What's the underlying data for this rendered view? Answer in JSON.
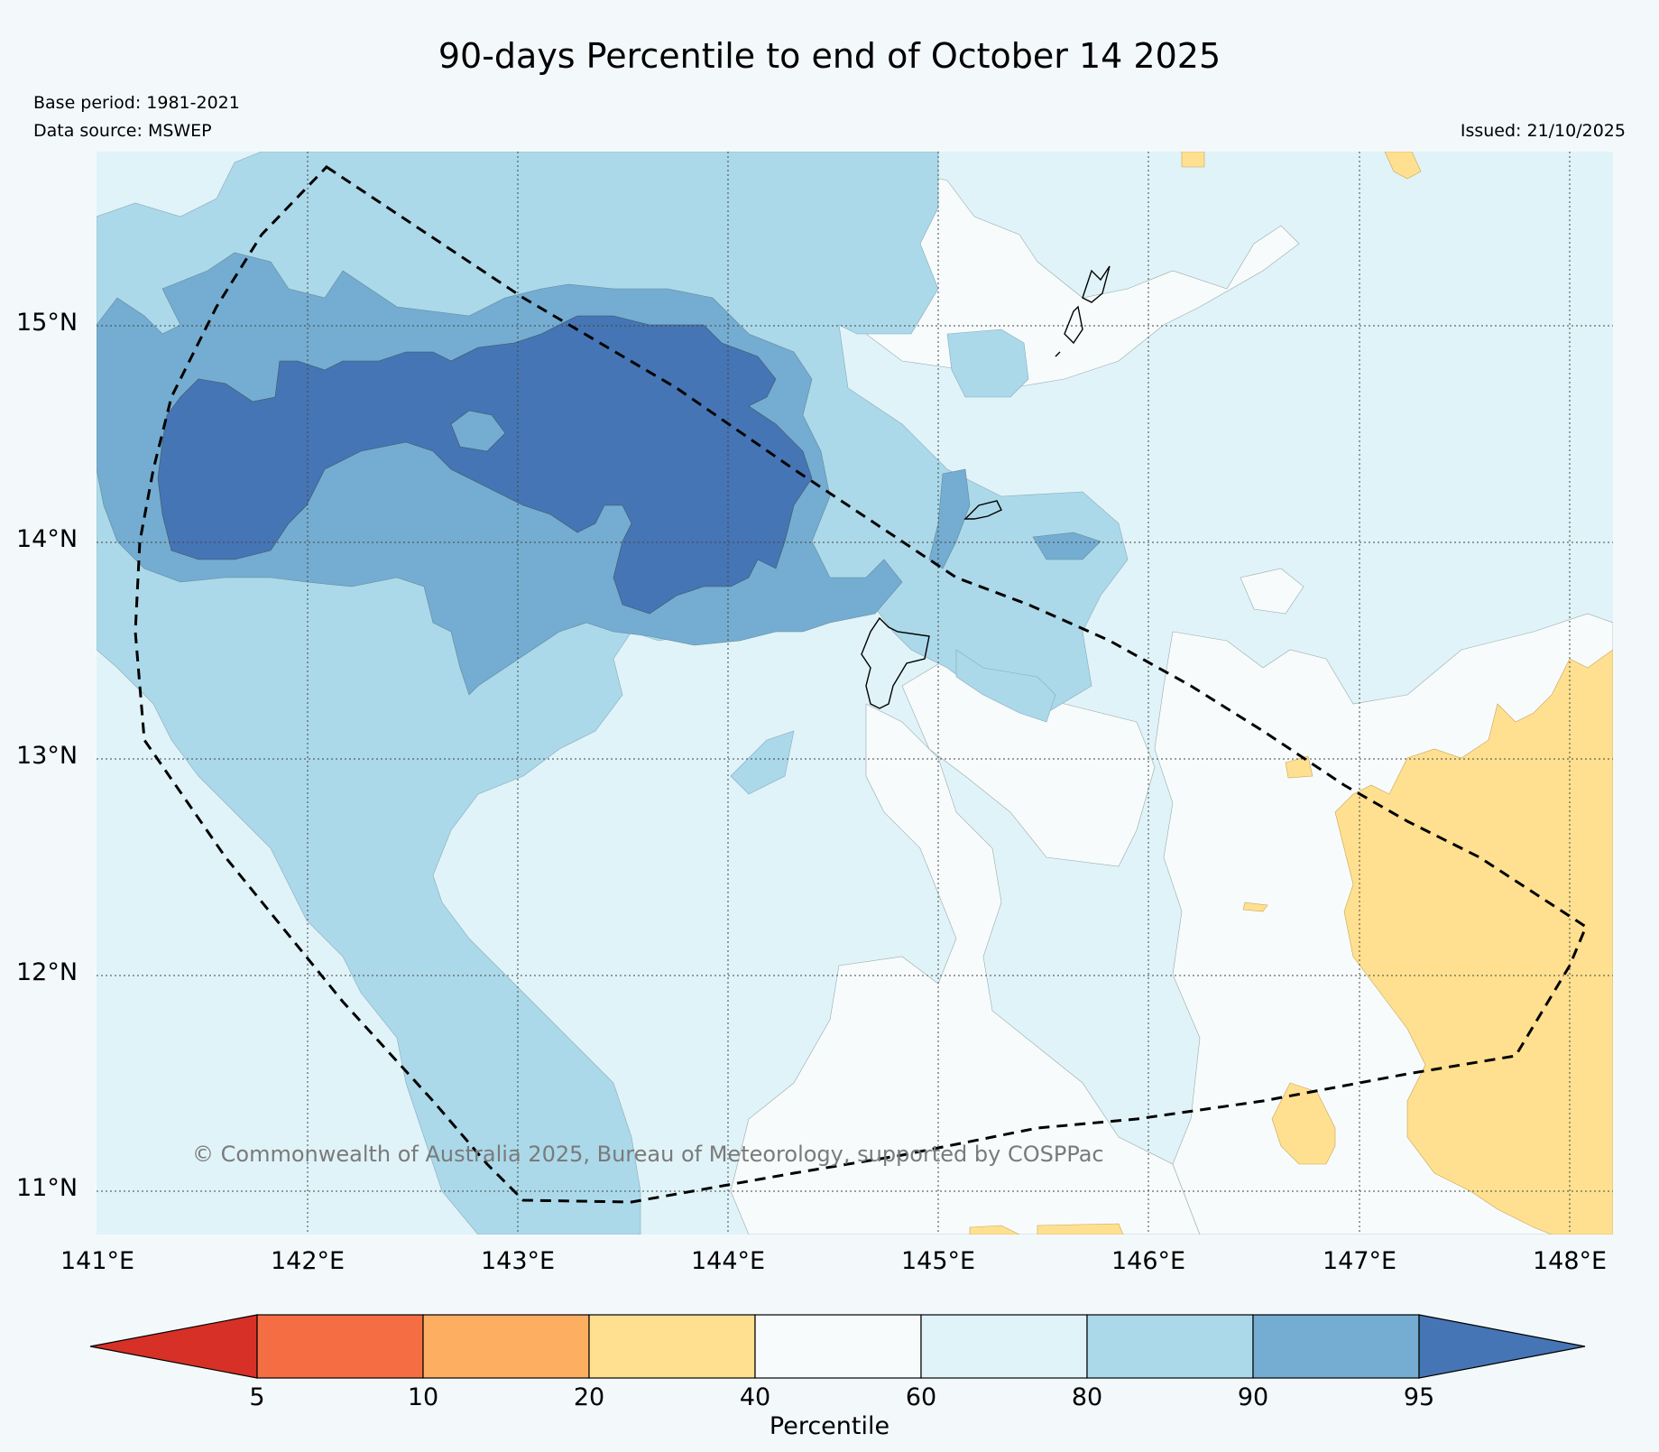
{
  "title": "90-days Percentile to end of October 14 2025",
  "base_period": "Base period: 1981-2021",
  "data_source": "Data source: MSWEP",
  "issued": "Issued: 21/10/2025",
  "copyright": "© Commonwealth of Australia 2025, Bureau of Meteorology, supported by COSPPac",
  "lat_ticks": [
    "15°N",
    "14°N",
    "13°N",
    "12°N",
    "11°N"
  ],
  "lon_ticks": [
    "141°E",
    "142°E",
    "143°E",
    "144°E",
    "145°E",
    "146°E",
    "147°E",
    "148°E"
  ],
  "colorbar": {
    "title": "Percentile",
    "labels": [
      "5",
      "10",
      "20",
      "40",
      "60",
      "80",
      "90",
      "95"
    ],
    "colors": [
      "#d73027",
      "#f46d43",
      "#fdae61",
      "#fee090",
      "#f7fbfc",
      "#e0f3f8",
      "#abd9e9",
      "#74add1",
      "#4575b4"
    ]
  }
}
